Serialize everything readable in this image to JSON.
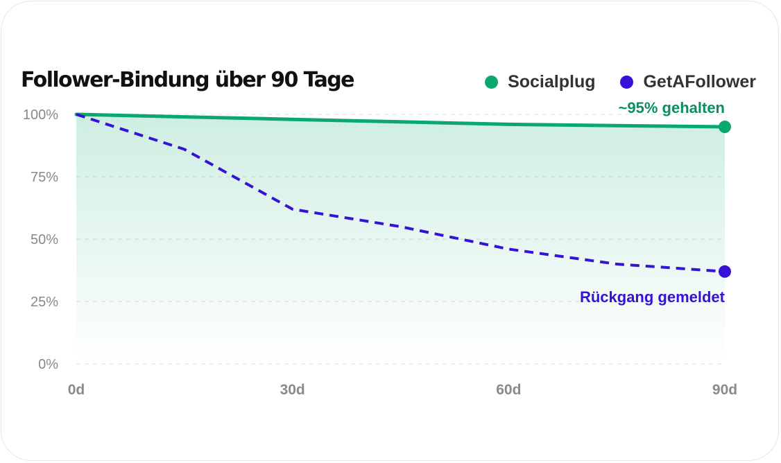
{
  "colors": {
    "socialplug": "#0aa86f",
    "getafollower": "#3512d6"
  },
  "chart_data": {
    "type": "line",
    "title": "Follower-Bindung über 90 Tage",
    "xlabel": "",
    "ylabel": "",
    "x": [
      0,
      15,
      30,
      45,
      60,
      75,
      90
    ],
    "x_tick_values": [
      0,
      30,
      60,
      90
    ],
    "x_tick_labels": [
      "0d",
      "30d",
      "60d",
      "90d"
    ],
    "y_tick_values": [
      0,
      25,
      50,
      75,
      100
    ],
    "y_tick_labels": [
      "0%",
      "25%",
      "50%",
      "75%",
      "100%"
    ],
    "xlim": [
      0,
      90
    ],
    "ylim": [
      0,
      100
    ],
    "grid": "horizontal-dashed",
    "legend_position": "top-right",
    "series": [
      {
        "name": "Socialplug",
        "key": "socialplug",
        "style": "solid",
        "area_fill": true,
        "values": [
          100,
          99,
          98,
          97,
          96,
          95.5,
          95
        ]
      },
      {
        "name": "GetAFollower",
        "key": "getafollower",
        "style": "dashed",
        "area_fill": false,
        "values": [
          100,
          86,
          62,
          55,
          46,
          40,
          37
        ]
      }
    ],
    "annotations": [
      {
        "series": "socialplug",
        "x": 90,
        "text": "~95% gehalten"
      },
      {
        "series": "getafollower",
        "x": 90,
        "text": "Rückgang gemeldet"
      }
    ]
  }
}
